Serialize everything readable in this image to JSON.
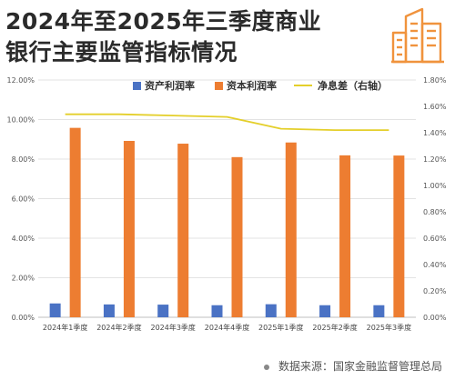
{
  "title_line1": "2024年至2025年三季度商业",
  "title_line2": "银行主要监管指标情况",
  "logo_icon": "city-buildings-icon",
  "source_text": "数据来源：国家金融监督管理总局",
  "colors": {
    "roa": "#4a72c4",
    "roe": "#ed7d31",
    "nim": "#e4cf2a",
    "logo": "#f0933d"
  },
  "chart_data": {
    "type": "bar",
    "categories": [
      "2024年1季度",
      "2024年2季度",
      "2024年3季度",
      "2024年4季度",
      "2025年1季度",
      "2025年2季度",
      "2025年3季度"
    ],
    "series": [
      {
        "name": "资产利润率",
        "type": "bar",
        "axis": "left",
        "values": [
          0.7,
          0.65,
          0.64,
          0.61,
          0.66,
          0.61,
          0.61
        ]
      },
      {
        "name": "资本利润率",
        "type": "bar",
        "axis": "left",
        "values": [
          9.58,
          8.92,
          8.78,
          8.1,
          8.84,
          8.19,
          8.18
        ]
      },
      {
        "name": "净息差（右轴）",
        "type": "line",
        "axis": "right",
        "values": [
          1.54,
          1.54,
          1.53,
          1.52,
          1.43,
          1.42,
          1.42
        ]
      }
    ],
    "left_axis": {
      "min": 0,
      "max": 12,
      "step": 2,
      "ticks": [
        "0.00%",
        "2.00%",
        "4.00%",
        "6.00%",
        "8.00%",
        "10.00%",
        "12.00%"
      ]
    },
    "right_axis": {
      "min": 0,
      "max": 1.8,
      "step": 0.2,
      "ticks": [
        "0.00%",
        "0.20%",
        "0.40%",
        "0.60%",
        "0.80%",
        "1.00%",
        "1.20%",
        "1.40%",
        "1.60%",
        "1.80%"
      ]
    },
    "grid": true,
    "legend_position": "top-center"
  }
}
